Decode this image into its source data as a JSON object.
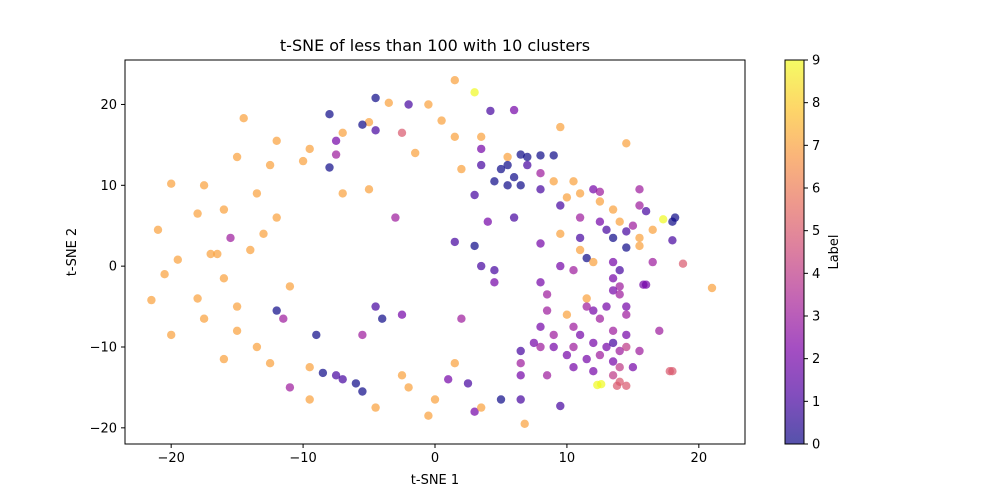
{
  "chart_data": {
    "type": "scatter",
    "title": "t-SNE of less than 100 with 10 clusters",
    "xlabel": "t-SNE 1",
    "ylabel": "t-SNE 2",
    "xlim": [
      -23.5,
      23.5
    ],
    "ylim": [
      -22,
      25.5
    ],
    "xticks": [
      -20,
      -10,
      0,
      10,
      20
    ],
    "yticks": [
      -20,
      -10,
      0,
      10,
      20
    ],
    "grid": false,
    "point_alpha": 0.7,
    "colormap": "plasma",
    "colorbar": {
      "label": "Label",
      "range": [
        0,
        9
      ],
      "ticks": [
        0,
        1,
        2,
        3,
        4,
        5,
        6,
        7,
        8,
        9
      ]
    },
    "points": [
      {
        "x": 1.5,
        "y": 23.0,
        "label": 7
      },
      {
        "x": 3.0,
        "y": 21.5,
        "label": 9
      },
      {
        "x": -4.5,
        "y": 20.8,
        "label": 0
      },
      {
        "x": -3.5,
        "y": 20.2,
        "label": 7
      },
      {
        "x": -2.0,
        "y": 20.0,
        "label": 1
      },
      {
        "x": -0.5,
        "y": 20.0,
        "label": 7
      },
      {
        "x": 4.2,
        "y": 19.2,
        "label": 1
      },
      {
        "x": 6.0,
        "y": 19.3,
        "label": 2
      },
      {
        "x": -8.0,
        "y": 18.8,
        "label": 0
      },
      {
        "x": -14.5,
        "y": 18.3,
        "label": 7
      },
      {
        "x": -5.0,
        "y": 17.8,
        "label": 7
      },
      {
        "x": -5.5,
        "y": 17.5,
        "label": 0
      },
      {
        "x": -7.0,
        "y": 16.5,
        "label": 7
      },
      {
        "x": -4.5,
        "y": 16.8,
        "label": 1
      },
      {
        "x": -2.5,
        "y": 16.5,
        "label": 5
      },
      {
        "x": 3.5,
        "y": 16.0,
        "label": 7
      },
      {
        "x": 1.5,
        "y": 16.0,
        "label": 7
      },
      {
        "x": 9.5,
        "y": 17.2,
        "label": 7
      },
      {
        "x": -7.5,
        "y": 15.5,
        "label": 2
      },
      {
        "x": 14.5,
        "y": 15.2,
        "label": 7
      },
      {
        "x": -12.0,
        "y": 15.5,
        "label": 7
      },
      {
        "x": -9.5,
        "y": 14.5,
        "label": 7
      },
      {
        "x": 5.5,
        "y": 13.5,
        "label": 7
      },
      {
        "x": 3.5,
        "y": 14.5,
        "label": 2
      },
      {
        "x": -7.5,
        "y": 13.8,
        "label": 3
      },
      {
        "x": -15.0,
        "y": 13.5,
        "label": 7
      },
      {
        "x": -8.0,
        "y": 12.2,
        "label": 0
      },
      {
        "x": 6.5,
        "y": 13.8,
        "label": 0
      },
      {
        "x": 7.0,
        "y": 13.5,
        "label": 0
      },
      {
        "x": 8.0,
        "y": 13.7,
        "label": 0
      },
      {
        "x": 9.0,
        "y": 13.7,
        "label": 0
      },
      {
        "x": 5.5,
        "y": 12.5,
        "label": 0
      },
      {
        "x": 5.0,
        "y": 12.0,
        "label": 0
      },
      {
        "x": 7.0,
        "y": 12.5,
        "label": 1
      },
      {
        "x": 8.0,
        "y": 11.5,
        "label": 3
      },
      {
        "x": 3.5,
        "y": 12.5,
        "label": 1
      },
      {
        "x": -10.0,
        "y": 13.0,
        "label": 7
      },
      {
        "x": -12.5,
        "y": 12.5,
        "label": 7
      },
      {
        "x": -20.0,
        "y": 10.2,
        "label": 7
      },
      {
        "x": -17.5,
        "y": 10.0,
        "label": 7
      },
      {
        "x": 4.5,
        "y": 10.5,
        "label": 0
      },
      {
        "x": 5.5,
        "y": 10.0,
        "label": 0
      },
      {
        "x": 6.0,
        "y": 11.0,
        "label": 0
      },
      {
        "x": 6.5,
        "y": 10.0,
        "label": 0
      },
      {
        "x": 8.0,
        "y": 9.5,
        "label": 1
      },
      {
        "x": 12.0,
        "y": 9.5,
        "label": 2
      },
      {
        "x": 12.5,
        "y": 9.2,
        "label": 3
      },
      {
        "x": 15.5,
        "y": 9.5,
        "label": 3
      },
      {
        "x": -13.5,
        "y": 9.0,
        "label": 7
      },
      {
        "x": 10.0,
        "y": 8.5,
        "label": 7
      },
      {
        "x": 11.0,
        "y": 9.0,
        "label": 7
      },
      {
        "x": 3.0,
        "y": 8.8,
        "label": 1
      },
      {
        "x": -7.0,
        "y": 9.0,
        "label": 7
      },
      {
        "x": -5.0,
        "y": 9.5,
        "label": 7
      },
      {
        "x": 9.5,
        "y": 7.5,
        "label": 1
      },
      {
        "x": 15.5,
        "y": 7.5,
        "label": 3
      },
      {
        "x": 16.0,
        "y": 6.8,
        "label": 1
      },
      {
        "x": 18.2,
        "y": 6.0,
        "label": 0
      },
      {
        "x": 18.0,
        "y": 5.5,
        "label": 0
      },
      {
        "x": 17.3,
        "y": 5.8,
        "label": 9
      },
      {
        "x": 11.0,
        "y": 6.0,
        "label": 3
      },
      {
        "x": 12.5,
        "y": 5.5,
        "label": 2
      },
      {
        "x": 14.0,
        "y": 5.5,
        "label": 7
      },
      {
        "x": 15.0,
        "y": 5.0,
        "label": 3
      },
      {
        "x": 6.0,
        "y": 6.0,
        "label": 1
      },
      {
        "x": 4.0,
        "y": 5.5,
        "label": 2
      },
      {
        "x": -3.0,
        "y": 6.0,
        "label": 3
      },
      {
        "x": -18.0,
        "y": 6.5,
        "label": 7
      },
      {
        "x": -16.0,
        "y": 7.0,
        "label": 7
      },
      {
        "x": -21.0,
        "y": 4.5,
        "label": 7
      },
      {
        "x": 13.0,
        "y": 4.5,
        "label": 1
      },
      {
        "x": 14.5,
        "y": 4.3,
        "label": 1
      },
      {
        "x": 15.5,
        "y": 3.5,
        "label": 7
      },
      {
        "x": 16.5,
        "y": 4.5,
        "label": 7
      },
      {
        "x": 13.5,
        "y": 3.5,
        "label": 0
      },
      {
        "x": 18.0,
        "y": 3.2,
        "label": 1
      },
      {
        "x": 14.5,
        "y": 2.3,
        "label": 0
      },
      {
        "x": 15.5,
        "y": 2.5,
        "label": 7
      },
      {
        "x": 11.0,
        "y": 3.5,
        "label": 1
      },
      {
        "x": 1.5,
        "y": 3.0,
        "label": 1
      },
      {
        "x": 3.0,
        "y": 2.5,
        "label": 0
      },
      {
        "x": 8.0,
        "y": 2.8,
        "label": 2
      },
      {
        "x": -15.5,
        "y": 3.5,
        "label": 3
      },
      {
        "x": -14.0,
        "y": 2.0,
        "label": 7
      },
      {
        "x": -19.5,
        "y": 0.8,
        "label": 7
      },
      {
        "x": -17.0,
        "y": 1.5,
        "label": 7
      },
      {
        "x": 11.5,
        "y": 1.0,
        "label": 0
      },
      {
        "x": 12.0,
        "y": 0.5,
        "label": 7
      },
      {
        "x": 13.5,
        "y": 0.5,
        "label": 2
      },
      {
        "x": 16.5,
        "y": 0.5,
        "label": 3
      },
      {
        "x": 18.8,
        "y": 0.3,
        "label": 5
      },
      {
        "x": 9.5,
        "y": 0.0,
        "label": 2
      },
      {
        "x": 10.5,
        "y": -0.5,
        "label": 3
      },
      {
        "x": 14.0,
        "y": -0.5,
        "label": 1
      },
      {
        "x": 3.5,
        "y": 0.0,
        "label": 1
      },
      {
        "x": 4.5,
        "y": -0.5,
        "label": 1
      },
      {
        "x": 13.5,
        "y": -1.5,
        "label": 2
      },
      {
        "x": 15.8,
        "y": -2.3,
        "label": 2
      },
      {
        "x": 16.0,
        "y": -2.3,
        "label": 2
      },
      {
        "x": 21.0,
        "y": -2.7,
        "label": 7
      },
      {
        "x": 14.0,
        "y": -2.5,
        "label": 3
      },
      {
        "x": 8.0,
        "y": -2.0,
        "label": 2
      },
      {
        "x": 4.5,
        "y": -2.0,
        "label": 2
      },
      {
        "x": -20.5,
        "y": -1.0,
        "label": 7
      },
      {
        "x": -16.0,
        "y": -1.5,
        "label": 7
      },
      {
        "x": 13.5,
        "y": -3.0,
        "label": 2
      },
      {
        "x": 14.0,
        "y": -3.5,
        "label": 3
      },
      {
        "x": 11.5,
        "y": -4.0,
        "label": 7
      },
      {
        "x": 8.5,
        "y": -3.5,
        "label": 3
      },
      {
        "x": 13.0,
        "y": -5.0,
        "label": 2
      },
      {
        "x": 14.5,
        "y": -5.0,
        "label": 2
      },
      {
        "x": 12.0,
        "y": -5.5,
        "label": 2
      },
      {
        "x": 11.5,
        "y": -5.0,
        "label": 3
      },
      {
        "x": 10.0,
        "y": -6.0,
        "label": 7
      },
      {
        "x": 8.5,
        "y": -5.5,
        "label": 3
      },
      {
        "x": 12.5,
        "y": -6.5,
        "label": 3
      },
      {
        "x": 14.5,
        "y": -6.0,
        "label": 3
      },
      {
        "x": -12.0,
        "y": -5.5,
        "label": 0
      },
      {
        "x": -11.5,
        "y": -6.5,
        "label": 3
      },
      {
        "x": -15.0,
        "y": -5.0,
        "label": 7
      },
      {
        "x": -21.5,
        "y": -4.2,
        "label": 7
      },
      {
        "x": -18.0,
        "y": -4.0,
        "label": 7
      },
      {
        "x": -17.5,
        "y": -6.5,
        "label": 7
      },
      {
        "x": -4.5,
        "y": -5.0,
        "label": 1
      },
      {
        "x": -4.0,
        "y": -6.5,
        "label": 0
      },
      {
        "x": -2.5,
        "y": -6.0,
        "label": 2
      },
      {
        "x": 2.0,
        "y": -6.5,
        "label": 3
      },
      {
        "x": 8.0,
        "y": -7.5,
        "label": 2
      },
      {
        "x": 10.5,
        "y": -7.5,
        "label": 3
      },
      {
        "x": 17.0,
        "y": -8.0,
        "label": 3
      },
      {
        "x": 9.0,
        "y": -8.5,
        "label": 3
      },
      {
        "x": 11.0,
        "y": -8.5,
        "label": 2
      },
      {
        "x": 13.5,
        "y": -8.0,
        "label": 3
      },
      {
        "x": 14.5,
        "y": -8.5,
        "label": 2
      },
      {
        "x": -20.0,
        "y": -8.5,
        "label": 7
      },
      {
        "x": -15.0,
        "y": -8.0,
        "label": 7
      },
      {
        "x": -9.0,
        "y": -8.5,
        "label": 0
      },
      {
        "x": -5.5,
        "y": -8.5,
        "label": 3
      },
      {
        "x": 7.5,
        "y": -9.5,
        "label": 2
      },
      {
        "x": 8.0,
        "y": -10.0,
        "label": 3
      },
      {
        "x": 9.0,
        "y": -10.0,
        "label": 2
      },
      {
        "x": 10.5,
        "y": -10.0,
        "label": 3
      },
      {
        "x": 12.0,
        "y": -9.5,
        "label": 2
      },
      {
        "x": 13.0,
        "y": -10.0,
        "label": 2
      },
      {
        "x": 13.5,
        "y": -9.5,
        "label": 1
      },
      {
        "x": 14.0,
        "y": -10.5,
        "label": 3
      },
      {
        "x": 14.5,
        "y": -10.0,
        "label": 4
      },
      {
        "x": 15.5,
        "y": -10.5,
        "label": 3
      },
      {
        "x": 10.0,
        "y": -11.0,
        "label": 2
      },
      {
        "x": 11.5,
        "y": -11.5,
        "label": 2
      },
      {
        "x": 12.5,
        "y": -11.0,
        "label": 3
      },
      {
        "x": 13.5,
        "y": -11.8,
        "label": 2
      },
      {
        "x": 14.0,
        "y": -12.5,
        "label": 4
      },
      {
        "x": 15.0,
        "y": -12.5,
        "label": 2
      },
      {
        "x": 6.5,
        "y": -10.5,
        "label": 1
      },
      {
        "x": 6.5,
        "y": -12.0,
        "label": 3
      },
      {
        "x": 6.5,
        "y": -13.5,
        "label": 2
      },
      {
        "x": 8.5,
        "y": -13.5,
        "label": 3
      },
      {
        "x": 10.5,
        "y": -12.5,
        "label": 2
      },
      {
        "x": 12.0,
        "y": -13.0,
        "label": 2
      },
      {
        "x": 13.5,
        "y": -13.5,
        "label": 4
      },
      {
        "x": 14.0,
        "y": -14.3,
        "label": 5
      },
      {
        "x": 14.5,
        "y": -14.8,
        "label": 5
      },
      {
        "x": 13.8,
        "y": -14.8,
        "label": 5
      },
      {
        "x": 12.3,
        "y": -14.7,
        "label": 9
      },
      {
        "x": 12.6,
        "y": -14.6,
        "label": 9
      },
      {
        "x": 17.8,
        "y": -13.0,
        "label": 5
      },
      {
        "x": 18.0,
        "y": -13.0,
        "label": 5
      },
      {
        "x": -9.5,
        "y": -12.5,
        "label": 7
      },
      {
        "x": -8.5,
        "y": -13.2,
        "label": 0
      },
      {
        "x": -7.5,
        "y": -13.5,
        "label": 1
      },
      {
        "x": -7.0,
        "y": -14.0,
        "label": 1
      },
      {
        "x": -6.0,
        "y": -14.5,
        "label": 0
      },
      {
        "x": -5.5,
        "y": -15.5,
        "label": 0
      },
      {
        "x": -11.0,
        "y": -15.0,
        "label": 3
      },
      {
        "x": -2.5,
        "y": -13.5,
        "label": 7
      },
      {
        "x": 1.0,
        "y": -14.0,
        "label": 2
      },
      {
        "x": 2.5,
        "y": -14.5,
        "label": 1
      },
      {
        "x": 5.0,
        "y": -16.5,
        "label": 0
      },
      {
        "x": 6.5,
        "y": -16.5,
        "label": 1
      },
      {
        "x": 3.0,
        "y": -18.0,
        "label": 2
      },
      {
        "x": 9.5,
        "y": -17.3,
        "label": 1
      },
      {
        "x": -9.5,
        "y": -16.5,
        "label": 7
      },
      {
        "x": -4.5,
        "y": -17.5,
        "label": 7
      },
      {
        "x": 0.0,
        "y": -16.5,
        "label": 7
      },
      {
        "x": -0.5,
        "y": -18.5,
        "label": 7
      },
      {
        "x": 6.8,
        "y": -19.5,
        "label": 7
      },
      {
        "x": 3.5,
        "y": -17.5,
        "label": 7
      },
      {
        "x": -2.0,
        "y": -15.0,
        "label": 7
      },
      {
        "x": 1.5,
        "y": -12.0,
        "label": 7
      },
      {
        "x": -16.5,
        "y": 1.5,
        "label": 7
      },
      {
        "x": -12.0,
        "y": 6.0,
        "label": 7
      },
      {
        "x": -13.0,
        "y": 4.0,
        "label": 7
      },
      {
        "x": -11.0,
        "y": -2.5,
        "label": 7
      },
      {
        "x": -13.5,
        "y": -10.0,
        "label": 7
      },
      {
        "x": -16.0,
        "y": -11.5,
        "label": 7
      },
      {
        "x": -12.5,
        "y": -12.0,
        "label": 7
      },
      {
        "x": 9.0,
        "y": 10.5,
        "label": 7
      },
      {
        "x": 10.5,
        "y": 10.5,
        "label": 7
      },
      {
        "x": 12.5,
        "y": 8.0,
        "label": 7
      },
      {
        "x": 13.5,
        "y": 7.0,
        "label": 7
      },
      {
        "x": 11.0,
        "y": 2.0,
        "label": 7
      },
      {
        "x": 9.5,
        "y": 4.0,
        "label": 7
      },
      {
        "x": 0.5,
        "y": 18.0,
        "label": 7
      },
      {
        "x": -1.5,
        "y": 14.0,
        "label": 7
      },
      {
        "x": 2.0,
        "y": 12.0,
        "label": 7
      }
    ]
  }
}
